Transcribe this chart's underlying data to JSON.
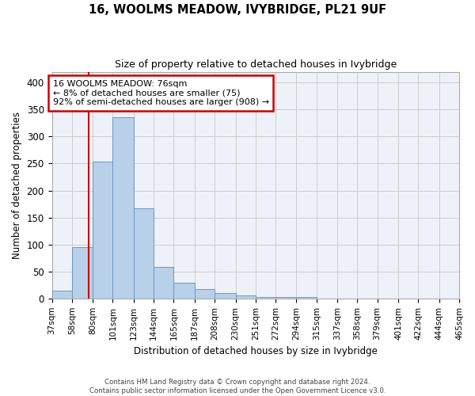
{
  "title": "16, WOOLMS MEADOW, IVYBRIDGE, PL21 9UF",
  "subtitle": "Size of property relative to detached houses in Ivybridge",
  "xlabel": "Distribution of detached houses by size in Ivybridge",
  "ylabel": "Number of detached properties",
  "bin_edges": [
    37,
    58,
    80,
    101,
    123,
    144,
    165,
    187,
    208,
    230,
    251,
    272,
    294,
    315,
    337,
    358,
    379,
    401,
    422,
    444,
    465
  ],
  "bar_heights": [
    15,
    95,
    253,
    335,
    167,
    58,
    29,
    17,
    10,
    5,
    3,
    2,
    3,
    0,
    0,
    0,
    0,
    0,
    0,
    0
  ],
  "bar_color": "#b8d0e8",
  "bar_edge_color": "#6699cc",
  "property_size": 76,
  "annotation_text_line1": "16 WOOLMS MEADOW: 76sqm",
  "annotation_text_line2": "← 8% of detached houses are smaller (75)",
  "annotation_text_line3": "92% of semi-detached houses are larger (908) →",
  "red_line_color": "#cc0000",
  "annotation_box_edge_color": "#cc0000",
  "ylim": [
    0,
    420
  ],
  "yticks": [
    0,
    50,
    100,
    150,
    200,
    250,
    300,
    350,
    400
  ],
  "grid_color": "#cccccc",
  "bg_color": "#eef2f8",
  "footer_line1": "Contains HM Land Registry data © Crown copyright and database right 2024.",
  "footer_line2": "Contains public sector information licensed under the Open Government Licence v3.0."
}
